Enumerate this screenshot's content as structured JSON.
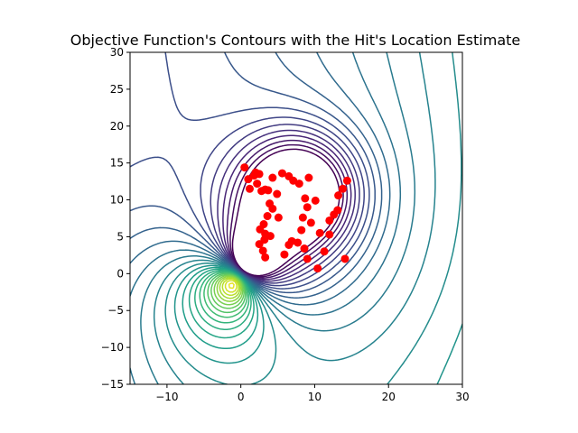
{
  "chart_data": {
    "type": "contour",
    "title": "Objective Function's Contours with the Hit's Location Estimate",
    "xlabel": "",
    "ylabel": "",
    "xlim": [
      -15,
      30
    ],
    "ylim": [
      -15,
      30
    ],
    "xticks": [
      -10,
      0,
      10,
      20,
      30
    ],
    "yticks": [
      -15,
      -10,
      -5,
      0,
      5,
      10,
      15,
      20,
      25,
      30
    ],
    "grid": false,
    "legend": "none",
    "colormap": "viridis",
    "contour_center": [
      0,
      0
    ],
    "minimum_region": [
      8,
      11
    ],
    "marker_color": "#ff0000",
    "points": [
      [
        0.5,
        14.4
      ],
      [
        1.0,
        12.8
      ],
      [
        1.2,
        11.5
      ],
      [
        1.8,
        13.3
      ],
      [
        2.0,
        13.7
      ],
      [
        2.2,
        12.2
      ],
      [
        2.5,
        13.5
      ],
      [
        2.8,
        11.2
      ],
      [
        3.3,
        11.4
      ],
      [
        3.7,
        11.3
      ],
      [
        4.3,
        13.0
      ],
      [
        4.9,
        10.8
      ],
      [
        5.6,
        13.6
      ],
      [
        6.5,
        13.2
      ],
      [
        7.1,
        12.6
      ],
      [
        7.9,
        12.2
      ],
      [
        9.2,
        13.0
      ],
      [
        3.9,
        9.5
      ],
      [
        4.3,
        8.8
      ],
      [
        8.7,
        10.2
      ],
      [
        9.0,
        9.0
      ],
      [
        10.1,
        9.9
      ],
      [
        8.4,
        7.6
      ],
      [
        9.5,
        6.9
      ],
      [
        12.0,
        7.2
      ],
      [
        12.6,
        8.0
      ],
      [
        13.1,
        8.6
      ],
      [
        13.2,
        10.6
      ],
      [
        13.8,
        11.5
      ],
      [
        14.4,
        12.6
      ],
      [
        12.0,
        5.3
      ],
      [
        10.7,
        5.5
      ],
      [
        8.2,
        5.9
      ],
      [
        5.1,
        7.6
      ],
      [
        3.6,
        7.8
      ],
      [
        3.1,
        6.7
      ],
      [
        2.6,
        6.0
      ],
      [
        3.3,
        5.4
      ],
      [
        4.0,
        5.1
      ],
      [
        3.2,
        4.6
      ],
      [
        2.5,
        4.0
      ],
      [
        3.0,
        3.1
      ],
      [
        3.3,
        2.2
      ],
      [
        5.9,
        2.6
      ],
      [
        6.5,
        3.9
      ],
      [
        6.9,
        4.4
      ],
      [
        7.7,
        4.2
      ],
      [
        8.6,
        3.4
      ],
      [
        9.0,
        2.0
      ],
      [
        11.3,
        3.0
      ],
      [
        14.1,
        2.0
      ],
      [
        10.4,
        0.7
      ]
    ]
  }
}
